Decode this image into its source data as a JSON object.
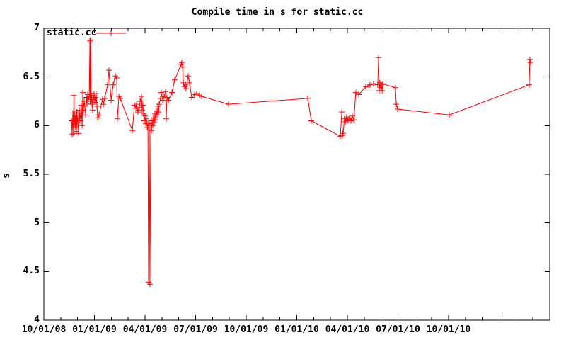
{
  "chart_data": {
    "type": "line",
    "title": "Compile time in s for static.cc",
    "ylabel": "s",
    "xlabel": "",
    "series_name": "static.cc",
    "series_color": "#ff0000",
    "border_color": "#000000",
    "background": "#ffffff",
    "marker": "plus",
    "legend_position": "top-left-inside",
    "grid": false,
    "x_unit": "months since 10/01/08",
    "xlim": [
      0,
      30
    ],
    "ylim": [
      4,
      7
    ],
    "x_minor_step": 1,
    "x_ticks": [
      {
        "m": 0,
        "label": "10/01/08"
      },
      {
        "m": 3,
        "label": "01/01/09"
      },
      {
        "m": 6,
        "label": "04/01/09"
      },
      {
        "m": 9,
        "label": "07/01/09"
      },
      {
        "m": 12,
        "label": "10/01/09"
      },
      {
        "m": 15,
        "label": "01/01/10"
      },
      {
        "m": 18,
        "label": "04/01/10"
      },
      {
        "m": 21,
        "label": "07/01/10"
      },
      {
        "m": 24,
        "label": "10/01/10"
      },
      {
        "m": 27,
        "label": ""
      },
      {
        "m": 30,
        "label": ""
      }
    ],
    "y_ticks": [
      {
        "v": 4,
        "label": "4"
      },
      {
        "v": 4.5,
        "label": "4.5"
      },
      {
        "v": 5,
        "label": "5"
      },
      {
        "v": 5.5,
        "label": "5.5"
      },
      {
        "v": 6,
        "label": "6"
      },
      {
        "v": 6.5,
        "label": "6.5"
      },
      {
        "v": 7,
        "label": "7"
      }
    ],
    "points": [
      [
        1.64,
        6.05
      ],
      [
        1.68,
        5.91
      ],
      [
        1.72,
        6.13
      ],
      [
        1.76,
        5.92
      ],
      [
        1.78,
        6.31
      ],
      [
        1.8,
        6.02
      ],
      [
        1.84,
        6.1
      ],
      [
        1.87,
        5.99
      ],
      [
        1.89,
        6.07
      ],
      [
        1.93,
        5.94
      ],
      [
        1.95,
        6.14
      ],
      [
        1.97,
        6.03
      ],
      [
        2.01,
        6.08
      ],
      [
        2.06,
        5.92
      ],
      [
        2.1,
        6.16
      ],
      [
        2.14,
        6.05
      ],
      [
        2.18,
        6.12
      ],
      [
        2.22,
        6.21
      ],
      [
        2.27,
        6.0
      ],
      [
        2.31,
        6.34
      ],
      [
        2.35,
        6.16
      ],
      [
        2.39,
        6.25
      ],
      [
        2.43,
        6.2
      ],
      [
        2.48,
        6.11
      ],
      [
        2.52,
        6.29
      ],
      [
        2.56,
        6.23
      ],
      [
        2.6,
        6.32
      ],
      [
        2.64,
        6.27
      ],
      [
        2.69,
        6.3
      ],
      [
        2.73,
        6.87
      ],
      [
        2.75,
        6.25
      ],
      [
        2.77,
        6.88
      ],
      [
        2.81,
        6.22
      ],
      [
        2.85,
        6.31
      ],
      [
        2.89,
        6.16
      ],
      [
        2.94,
        6.27
      ],
      [
        2.98,
        6.33
      ],
      [
        3.02,
        6.24
      ],
      [
        3.06,
        6.29
      ],
      [
        3.1,
        6.33
      ],
      [
        3.15,
        6.2
      ],
      [
        3.19,
        6.08
      ],
      [
        3.27,
        6.11
      ],
      [
        3.48,
        6.27
      ],
      [
        3.53,
        6.22
      ],
      [
        3.61,
        6.28
      ],
      [
        3.78,
        6.42
      ],
      [
        3.86,
        6.57
      ],
      [
        3.99,
        6.26
      ],
      [
        4.11,
        6.42
      ],
      [
        4.24,
        6.51
      ],
      [
        4.32,
        6.49
      ],
      [
        4.36,
        6.07
      ],
      [
        4.45,
        6.3
      ],
      [
        4.53,
        6.28
      ],
      [
        5.25,
        5.95
      ],
      [
        5.37,
        6.21
      ],
      [
        5.46,
        6.18
      ],
      [
        5.5,
        6.22
      ],
      [
        5.58,
        6.14
      ],
      [
        5.66,
        6.19
      ],
      [
        5.71,
        6.25
      ],
      [
        5.79,
        6.3
      ],
      [
        5.83,
        6.16
      ],
      [
        5.87,
        6.21
      ],
      [
        5.92,
        6.12
      ],
      [
        5.96,
        6.05
      ],
      [
        6.0,
        6.1
      ],
      [
        6.04,
        6.02
      ],
      [
        6.08,
        6.07
      ],
      [
        6.13,
        5.98
      ],
      [
        6.17,
        6.03
      ],
      [
        6.21,
        4.39
      ],
      [
        6.25,
        6.02
      ],
      [
        6.29,
        4.37
      ],
      [
        6.34,
        6.0
      ],
      [
        6.38,
        5.95
      ],
      [
        6.42,
        6.05
      ],
      [
        6.46,
        6.0
      ],
      [
        6.5,
        6.08
      ],
      [
        6.55,
        6.03
      ],
      [
        6.59,
        6.12
      ],
      [
        6.63,
        6.06
      ],
      [
        6.67,
        6.15
      ],
      [
        6.71,
        6.11
      ],
      [
        6.76,
        6.2
      ],
      [
        6.8,
        6.14
      ],
      [
        6.84,
        6.22
      ],
      [
        6.92,
        6.28
      ],
      [
        6.97,
        6.34
      ],
      [
        7.05,
        6.26
      ],
      [
        7.13,
        6.3
      ],
      [
        7.22,
        6.35
      ],
      [
        7.26,
        6.07
      ],
      [
        7.3,
        6.29
      ],
      [
        7.39,
        6.26
      ],
      [
        7.6,
        6.34
      ],
      [
        7.76,
        6.47
      ],
      [
        8.14,
        6.63
      ],
      [
        8.18,
        6.65
      ],
      [
        8.23,
        6.6
      ],
      [
        8.27,
        6.44
      ],
      [
        8.35,
        6.4
      ],
      [
        8.39,
        6.42
      ],
      [
        8.43,
        6.38
      ],
      [
        8.56,
        6.51
      ],
      [
        8.64,
        6.44
      ],
      [
        8.77,
        6.29
      ],
      [
        8.94,
        6.32
      ],
      [
        9.06,
        6.33
      ],
      [
        9.23,
        6.31
      ],
      [
        9.36,
        6.3
      ],
      [
        10.95,
        6.22
      ],
      [
        15.65,
        6.28
      ],
      [
        15.86,
        6.05
      ],
      [
        17.58,
        5.89
      ],
      [
        17.67,
        6.14
      ],
      [
        17.71,
        5.9
      ],
      [
        17.75,
        5.92
      ],
      [
        17.83,
        6.07
      ],
      [
        17.88,
        6.04
      ],
      [
        17.96,
        6.09
      ],
      [
        18.04,
        6.05
      ],
      [
        18.13,
        6.08
      ],
      [
        18.21,
        6.05
      ],
      [
        18.29,
        6.1
      ],
      [
        18.38,
        6.06
      ],
      [
        18.5,
        6.34
      ],
      [
        18.67,
        6.32
      ],
      [
        19.09,
        6.4
      ],
      [
        19.34,
        6.42
      ],
      [
        19.55,
        6.43
      ],
      [
        19.8,
        6.42
      ],
      [
        19.85,
        6.7
      ],
      [
        19.89,
        6.36
      ],
      [
        19.93,
        6.44
      ],
      [
        19.97,
        6.39
      ],
      [
        20.01,
        6.42
      ],
      [
        20.06,
        6.36
      ],
      [
        20.1,
        6.43
      ],
      [
        20.85,
        6.39
      ],
      [
        20.9,
        6.22
      ],
      [
        20.98,
        6.17
      ],
      [
        24.04,
        6.11
      ],
      [
        28.78,
        6.42
      ],
      [
        28.82,
        6.68
      ],
      [
        28.86,
        6.65
      ]
    ]
  }
}
